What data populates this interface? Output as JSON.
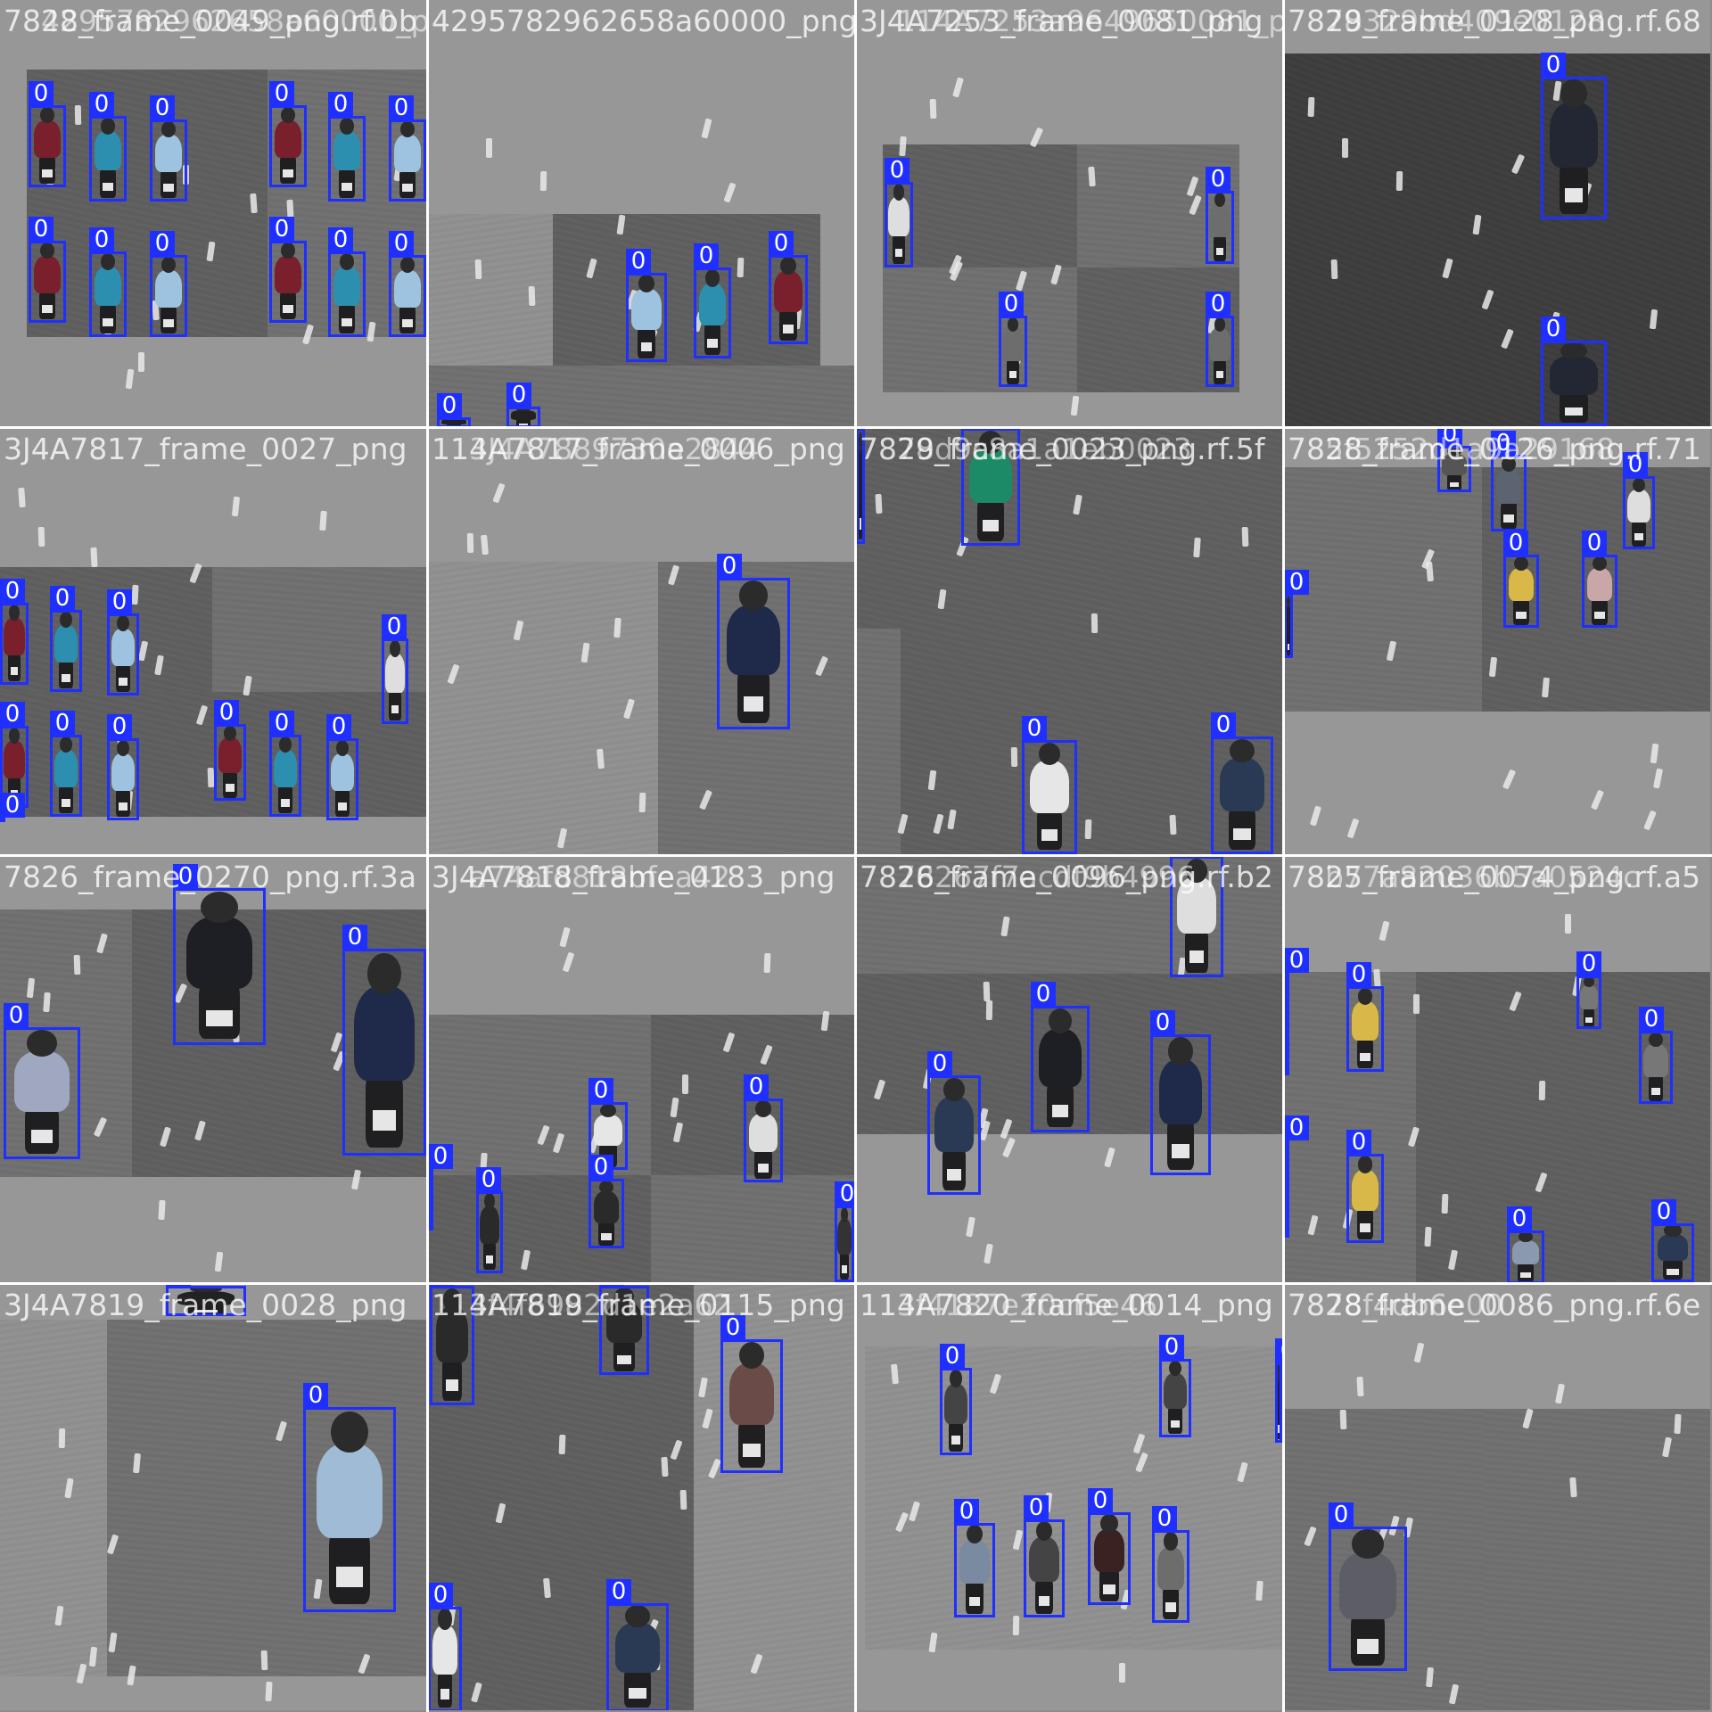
{
  "window": {
    "label_class": "0",
    "box_color": "#1f2fff"
  },
  "tiles": [
    {
      "title": "7828_frame_0049_png.rf.bb",
      "overlay": "4295782962658a60000_png",
      "boxes": 12
    },
    {
      "title": "4295782962658a60000_png",
      "overlay": "",
      "boxes": 5
    },
    {
      "title": "3J4A7253_frame_0081_png",
      "overlay": "114A7253a9649650081_png",
      "boxes": 5
    },
    {
      "title": "7829_frame_0128_png.rf.68",
      "overlay": "78329bd409e0128",
      "boxes": 2
    },
    {
      "title": "3J4A7817_frame_0027_png",
      "overlay": "",
      "boxes": 12
    },
    {
      "title": "114A7817_frame_0006_png",
      "overlay": "3J4A7889730a2844",
      "boxes": 1
    },
    {
      "title": "7829_frame_0023_png.rf.5f",
      "overlay": "78d9c8a1a1eb0023",
      "boxes": 6
    },
    {
      "title": "7828_frame_0126_png.rf.71",
      "overlay": "5f5252d1a9a29168",
      "boxes": 8
    },
    {
      "title": "7826_frame_0270_png.rf.3a",
      "overlay": "",
      "boxes": 4
    },
    {
      "title": "3J4A7818_frame_0183_png",
      "overlay": "a74afd818bfea42",
      "boxes": 9
    },
    {
      "title": "7826_frame_0096_png.rf.b2",
      "overlay": "78267f7acdf9b4996",
      "boxes": 4
    },
    {
      "title": "7825_frame_0074_png.rf.a5",
      "overlay": "b77a82036b5a0524c",
      "boxes": 9
    },
    {
      "title": "3J4A7819_frame_0028_png",
      "overlay": "",
      "boxes": 2
    },
    {
      "title": "114A7819_frame_0115_png",
      "overlay": "3f4f6982d1e2a62",
      "boxes": 6
    },
    {
      "title": "114A7820_frame_0014_png",
      "overlay": "3f4187e20cf5e46",
      "boxes": 9
    },
    {
      "title": "7828_frame_0086_png.rf.6e",
      "overlay": "78f4db6e00",
      "boxes": 1
    }
  ]
}
